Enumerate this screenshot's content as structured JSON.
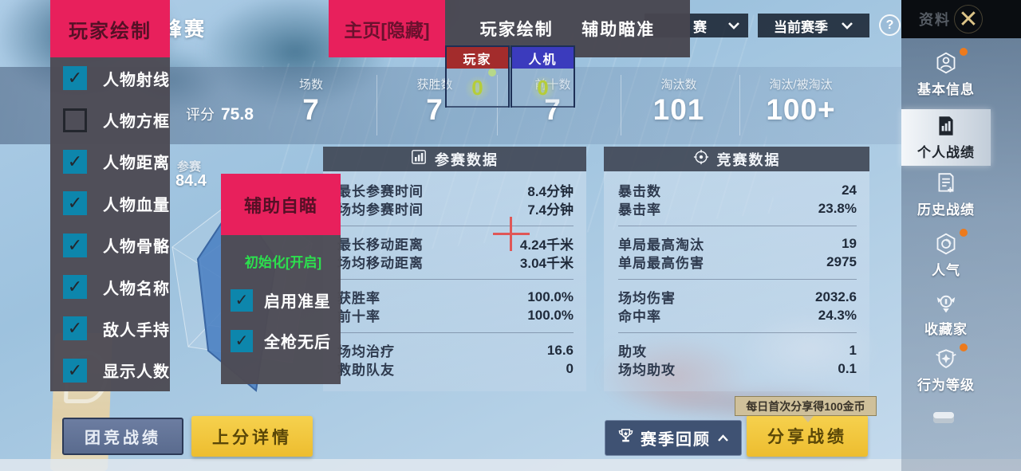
{
  "colors": {
    "accent_pink": "#e8205c",
    "checkbox_teal": "#0d86ac",
    "counter_red": "#a32c2c",
    "counter_blue": "#3b3bbd",
    "button_yellow": "#f0c63d",
    "badge_orange": "#ed7a1c",
    "status_green": "#2ce04e"
  },
  "top_bar": {
    "page_title": "峰赛",
    "mode_dropdown_label": "赛",
    "season_dropdown_label": "当前赛季",
    "help_label": "?"
  },
  "score_band": {
    "rating_label": "评分",
    "rating_value": "75.8",
    "columns": [
      {
        "label": "场数",
        "value": "7"
      },
      {
        "label": "获胜数",
        "value": "7"
      },
      {
        "label": "前十数",
        "value": "7"
      },
      {
        "label": "淘汰数",
        "value": "101"
      },
      {
        "label": "淘汰/被淘汰",
        "value": "100+"
      }
    ]
  },
  "radar": {
    "metric_label": "参赛",
    "metric_value": "84.4"
  },
  "panels": [
    {
      "title": "参赛数据",
      "icon": "bar-chart-icon",
      "groups": [
        [
          {
            "label": "最长参赛时间",
            "value": "8.4分钟"
          },
          {
            "label": "场均参赛时间",
            "value": "7.4分钟"
          }
        ],
        [
          {
            "label": "最长移动距离",
            "value": "4.24千米"
          },
          {
            "label": "场均移动距离",
            "value": "3.04千米"
          }
        ],
        [
          {
            "label": "获胜率",
            "value": "100.0%"
          },
          {
            "label": "前十率",
            "value": "100.0%"
          }
        ],
        [
          {
            "label": "场均治疗",
            "value": "16.6"
          },
          {
            "label": "救助队友",
            "value": "0"
          }
        ]
      ]
    },
    {
      "title": "竞赛数据",
      "icon": "target-icon",
      "groups": [
        [
          {
            "label": "暴击数",
            "value": "24"
          },
          {
            "label": "暴击率",
            "value": "23.8%"
          }
        ],
        [
          {
            "label": "单局最高淘汰",
            "value": "19"
          },
          {
            "label": "单局最高伤害",
            "value": "2975"
          }
        ],
        [
          {
            "label": "场均伤害",
            "value": "2032.6"
          },
          {
            "label": "命中率",
            "value": "24.3%"
          }
        ],
        [
          {
            "label": "助攻",
            "value": "1"
          },
          {
            "label": "场均助攻",
            "value": "0.1"
          }
        ]
      ]
    }
  ],
  "footer": {
    "team_stats_button": "团竞战绩",
    "rank_details_button": "上分详情",
    "season_review_button": "赛季回顾",
    "share_stats_button": "分享战绩",
    "share_tooltip": "每日首次分享得100金币"
  },
  "sidebar": {
    "header_label": "资料",
    "close_glyph": "✕",
    "items": [
      {
        "label": "基本信息",
        "icon": "profile-hex-icon",
        "badge": true,
        "active": false
      },
      {
        "label": "个人战绩",
        "icon": "personal-stats-icon",
        "badge": false,
        "active": true
      },
      {
        "label": "历史战绩",
        "icon": "history-stats-icon",
        "badge": false,
        "active": false
      },
      {
        "label": "人气",
        "icon": "popularity-icon",
        "badge": true,
        "active": false
      },
      {
        "label": "收藏家",
        "icon": "collector-icon",
        "badge": false,
        "active": false
      },
      {
        "label": "行为等级",
        "icon": "conduct-level-icon",
        "badge": true,
        "active": false
      }
    ]
  },
  "cheat_overlay": {
    "draw_panel": {
      "title": "玩家绘制",
      "items": [
        {
          "label": "人物射线",
          "checked": true
        },
        {
          "label": "人物方框",
          "checked": false
        },
        {
          "label": "人物距离",
          "checked": true
        },
        {
          "label": "人物血量",
          "checked": true
        },
        {
          "label": "人物骨骼",
          "checked": true
        },
        {
          "label": "人物名称",
          "checked": true
        },
        {
          "label": "敌人手持",
          "checked": true
        },
        {
          "label": "显示人数",
          "checked": true
        }
      ]
    },
    "home_button_label": "主页[隐藏]",
    "tabs": [
      {
        "label": "玩家绘制"
      },
      {
        "label": "辅助瞄准"
      }
    ],
    "counters": [
      {
        "label": "玩家",
        "value": "0"
      },
      {
        "label": "人机",
        "value": "0"
      }
    ],
    "aim_panel": {
      "title": "辅助自瞄",
      "status_label": "初始化[开启]",
      "items": [
        {
          "label": "启用准星",
          "checked": true
        },
        {
          "label": "全枪无后",
          "checked": true
        }
      ]
    }
  }
}
